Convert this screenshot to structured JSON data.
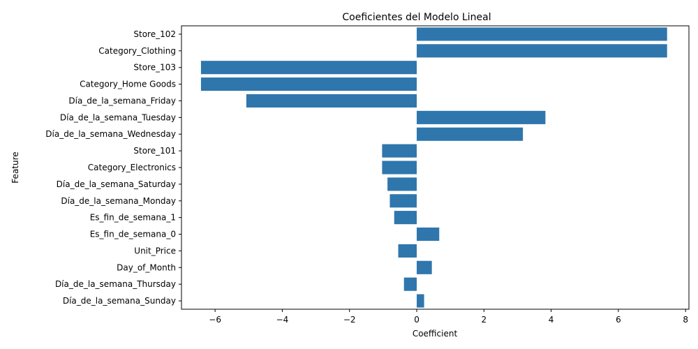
{
  "chart_data": {
    "type": "bar",
    "orientation": "horizontal",
    "title": "Coeficientes del Modelo Lineal",
    "xlabel": "Coefficient",
    "ylabel": "Feature",
    "categories": [
      "Store_102",
      "Category_Clothing",
      "Store_103",
      "Category_Home Goods",
      "Día_de_la_semana_Friday",
      "Día_de_la_semana_Tuesday",
      "Día_de_la_semana_Wednesday",
      "Store_101",
      "Category_Electronics",
      "Día_de_la_semana_Saturday",
      "Día_de_la_semana_Monday",
      "Es_fin_de_semana_1",
      "Es_fin_de_semana_0",
      "Unit_Price",
      "Day_of_Month",
      "Día_de_la_semana_Thursday",
      "Día_de_la_semana_Sunday"
    ],
    "values": [
      7.45,
      7.45,
      -6.42,
      -6.42,
      -5.07,
      3.83,
      3.16,
      -1.03,
      -1.03,
      -0.87,
      -0.8,
      -0.67,
      0.67,
      -0.55,
      0.45,
      -0.38,
      0.22
    ],
    "xlim": [
      -7,
      8.1
    ],
    "xticks": [
      -6,
      -4,
      -2,
      0,
      2,
      4,
      6,
      8
    ],
    "xtick_labels": [
      "−6",
      "−4",
      "−2",
      "0",
      "2",
      "4",
      "6",
      "8"
    ],
    "bar_color": "#2f76ad",
    "grid": false,
    "legend": "none"
  }
}
